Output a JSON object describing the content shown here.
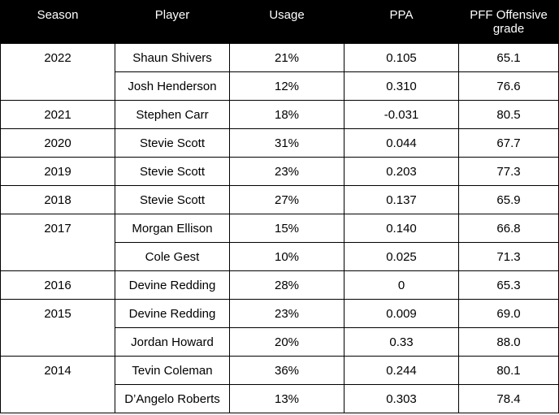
{
  "headers": {
    "season": "Season",
    "player": "Player",
    "usage": "Usage",
    "ppa": "PPA",
    "pff": "PFF Offensive grade"
  },
  "groups": [
    {
      "season": "2022",
      "rows": [
        {
          "player": "Shaun Shivers",
          "usage": "21%",
          "ppa": "0.105",
          "pff": "65.1"
        },
        {
          "player": "Josh Henderson",
          "usage": "12%",
          "ppa": "0.310",
          "pff": "76.6"
        }
      ]
    },
    {
      "season": "2021",
      "rows": [
        {
          "player": "Stephen Carr",
          "usage": "18%",
          "ppa": "-0.031",
          "pff": "80.5"
        }
      ]
    },
    {
      "season": "2020",
      "rows": [
        {
          "player": "Stevie Scott",
          "usage": "31%",
          "ppa": "0.044",
          "pff": "67.7"
        }
      ]
    },
    {
      "season": "2019",
      "rows": [
        {
          "player": "Stevie Scott",
          "usage": "23%",
          "ppa": "0.203",
          "pff": "77.3"
        }
      ]
    },
    {
      "season": "2018",
      "rows": [
        {
          "player": "Stevie Scott",
          "usage": "27%",
          "ppa": "0.137",
          "pff": "65.9"
        }
      ]
    },
    {
      "season": "2017",
      "rows": [
        {
          "player": "Morgan Ellison",
          "usage": "15%",
          "ppa": "0.140",
          "pff": "66.8"
        },
        {
          "player": "Cole Gest",
          "usage": "10%",
          "ppa": "0.025",
          "pff": "71.3"
        }
      ]
    },
    {
      "season": "2016",
      "rows": [
        {
          "player": "Devine Redding",
          "usage": "28%",
          "ppa": "0",
          "pff": "65.3"
        }
      ]
    },
    {
      "season": "2015",
      "rows": [
        {
          "player": "Devine Redding",
          "usage": "23%",
          "ppa": "0.009",
          "pff": "69.0"
        },
        {
          "player": "Jordan Howard",
          "usage": "20%",
          "ppa": "0.33",
          "pff": "88.0"
        }
      ]
    },
    {
      "season": "2014",
      "rows": [
        {
          "player": "Tevin Coleman",
          "usage": "36%",
          "ppa": "0.244",
          "pff": "80.1"
        },
        {
          "player": "D’Angelo Roberts",
          "usage": "13%",
          "ppa": "0.303",
          "pff": "78.4"
        }
      ]
    }
  ]
}
